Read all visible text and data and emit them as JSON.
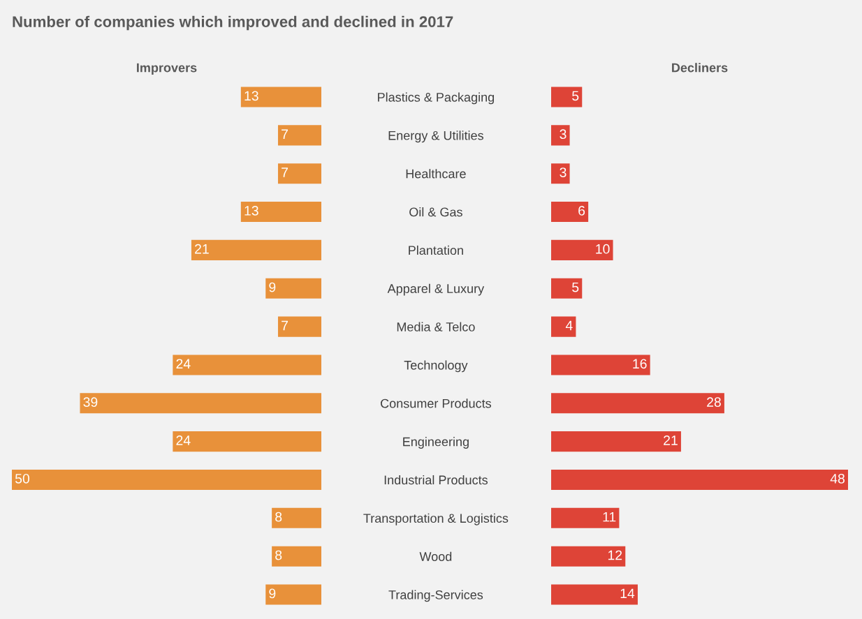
{
  "chart_data": [
    {
      "type": "bar",
      "orientation": "horizontal",
      "title": "Improvers",
      "annotations": [
        "Number of companies which improved and declined in 2017"
      ],
      "categories": [
        "Plastics & Packaging",
        "Energy & Utilities",
        "Healthcare",
        "Oil & Gas",
        "Plantation",
        "Apparel & Luxury",
        "Media & Telco",
        "Technology",
        "Consumer Products",
        "Engineering",
        "Industrial Products",
        "Transportation & Logistics",
        "Wood",
        "Trading-Services"
      ],
      "series": [
        {
          "color": "#e8913a",
          "values": [
            13,
            7,
            7,
            13,
            21,
            9,
            7,
            24,
            39,
            24,
            50,
            8,
            8,
            9
          ]
        }
      ],
      "xlim": [
        50,
        0
      ],
      "data_labels": true,
      "tick_labels": "y",
      "grid": false,
      "legend": false
    },
    {
      "type": "bar",
      "orientation": "horizontal",
      "title": "Decliners",
      "categories": [
        null,
        null,
        null,
        null,
        null,
        null,
        null,
        null,
        null,
        null,
        null,
        null,
        null,
        null
      ],
      "series": [
        {
          "color": "#de4437",
          "values": [
            5,
            3,
            3,
            6,
            10,
            5,
            4,
            16,
            28,
            21,
            48,
            11,
            12,
            14
          ]
        }
      ],
      "xlim": [
        0,
        48
      ],
      "data_labels": true,
      "tick_labels": false,
      "grid": false,
      "legend": false
    }
  ]
}
